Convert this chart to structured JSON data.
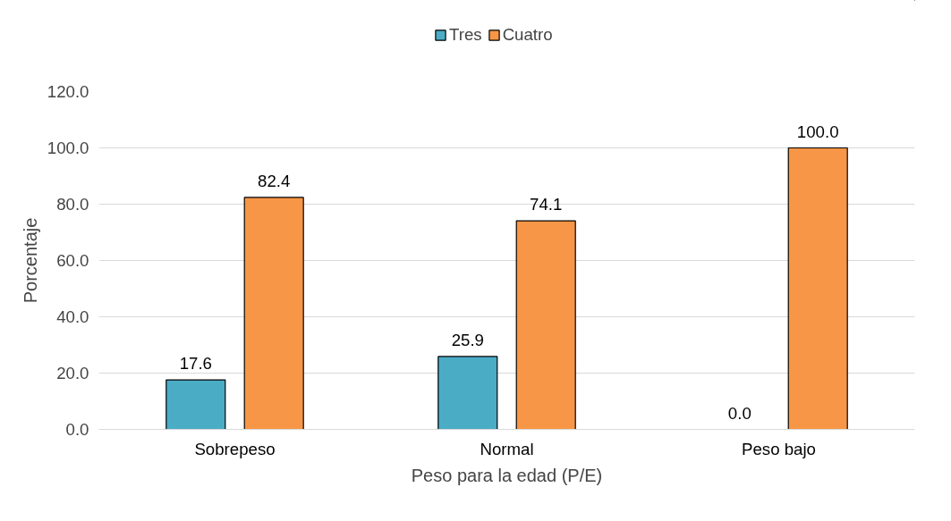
{
  "chart_data": {
    "type": "bar",
    "xlabel": "Peso para la edad (P/E)",
    "ylabel": "Porcentaje",
    "categories": [
      "Sobrepeso",
      "Normal",
      "Peso bajo"
    ],
    "series": [
      {
        "name": "Tres",
        "color": "#4bacc6",
        "values": [
          17.6,
          25.9,
          0.0
        ],
        "value_labels": [
          "17.6",
          "25.9",
          "0.0"
        ]
      },
      {
        "name": "Cuatro",
        "color": "#f79646",
        "values": [
          82.4,
          74.1,
          100.0
        ],
        "value_labels": [
          "82.4",
          "74.1",
          "100.0"
        ]
      }
    ],
    "ylim": [
      0,
      120
    ],
    "yticks": [
      {
        "value": 0,
        "label": "0.0"
      },
      {
        "value": 20,
        "label": "20.0"
      },
      {
        "value": 40,
        "label": "40.0"
      },
      {
        "value": 60,
        "label": "60.0"
      },
      {
        "value": 80,
        "label": "80.0"
      },
      {
        "value": 100,
        "label": "100.0"
      },
      {
        "value": 120,
        "label": "120.0"
      }
    ],
    "grid": "y",
    "legend": "top"
  }
}
